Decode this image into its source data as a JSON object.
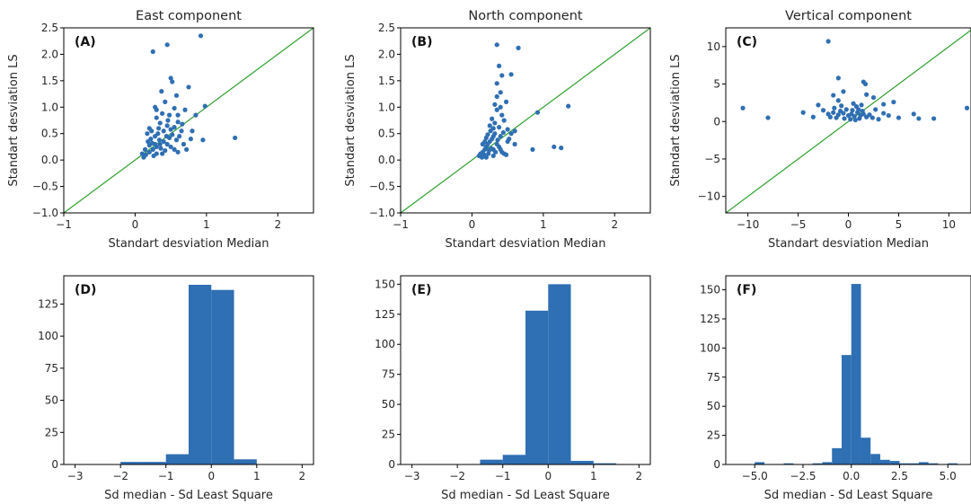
{
  "colors": {
    "points": "#2f6fb3",
    "bars": "#2f6fb3",
    "diagonal": "#2ca02c",
    "axes": "#000000"
  },
  "chart_data": [
    {
      "id": "A",
      "type": "scatter",
      "panel_label": "(A)",
      "title": "East component",
      "xlabel": "Standart desviation Median",
      "ylabel": "Standart desviation LS",
      "xlim": [
        -1,
        2.5
      ],
      "ylim": [
        -1.0,
        2.5
      ],
      "xticks": [
        -1,
        0,
        1,
        2
      ],
      "xtick_labels": [
        "−1",
        "0",
        "1",
        "2"
      ],
      "yticks": [
        -1.0,
        -0.5,
        0.0,
        0.5,
        1.0,
        1.5,
        2.0,
        2.5
      ],
      "ytick_labels": [
        "−1.0",
        "−0.5",
        "0.0",
        "0.5",
        "1.0",
        "1.5",
        "2.0",
        "2.5"
      ],
      "reference_line": "y = x",
      "points": [
        [
          0.92,
          2.35
        ],
        [
          0.45,
          2.18
        ],
        [
          0.25,
          2.05
        ],
        [
          0.5,
          1.55
        ],
        [
          0.52,
          1.48
        ],
        [
          0.37,
          1.3
        ],
        [
          0.75,
          1.38
        ],
        [
          0.58,
          1.22
        ],
        [
          0.98,
          1.02
        ],
        [
          0.42,
          1.1
        ],
        [
          0.28,
          1.0
        ],
        [
          0.55,
          0.98
        ],
        [
          0.7,
          0.95
        ],
        [
          0.85,
          0.85
        ],
        [
          1.4,
          0.42
        ],
        [
          0.95,
          0.38
        ],
        [
          0.78,
          0.4
        ],
        [
          0.6,
          0.72
        ],
        [
          0.48,
          0.85
        ],
        [
          0.3,
          0.8
        ],
        [
          0.2,
          0.6
        ],
        [
          0.35,
          0.7
        ],
        [
          0.45,
          0.65
        ],
        [
          0.65,
          0.55
        ],
        [
          0.12,
          0.05
        ],
        [
          0.15,
          0.1
        ],
        [
          0.2,
          0.15
        ],
        [
          0.25,
          0.2
        ],
        [
          0.3,
          0.25
        ],
        [
          0.35,
          0.3
        ],
        [
          0.18,
          0.35
        ],
        [
          0.22,
          0.4
        ],
        [
          0.28,
          0.45
        ],
        [
          0.32,
          0.5
        ],
        [
          0.4,
          0.35
        ],
        [
          0.45,
          0.3
        ],
        [
          0.5,
          0.25
        ],
        [
          0.55,
          0.2
        ],
        [
          0.6,
          0.15
        ],
        [
          0.38,
          0.12
        ],
        [
          0.42,
          0.18
        ],
        [
          0.48,
          0.42
        ],
        [
          0.52,
          0.48
        ],
        [
          0.58,
          0.38
        ],
        [
          0.26,
          0.08
        ],
        [
          0.3,
          0.12
        ],
        [
          0.36,
          0.22
        ],
        [
          0.4,
          0.55
        ],
        [
          0.14,
          0.2
        ],
        [
          0.2,
          0.28
        ],
        [
          0.24,
          0.32
        ],
        [
          0.62,
          0.45
        ],
        [
          0.68,
          0.3
        ],
        [
          0.72,
          0.2
        ],
        [
          0.17,
          0.5
        ],
        [
          0.23,
          0.55
        ],
        [
          0.33,
          0.6
        ],
        [
          0.5,
          0.58
        ],
        [
          0.55,
          0.62
        ],
        [
          0.1,
          0.12
        ],
        [
          0.28,
          0.3
        ],
        [
          0.34,
          0.38
        ],
        [
          0.44,
          0.45
        ],
        [
          0.8,
          0.55
        ],
        [
          0.3,
          0.95
        ],
        [
          0.38,
          0.88
        ],
        [
          0.46,
          0.75
        ],
        [
          0.6,
          0.85
        ],
        [
          0.66,
          0.68
        ]
      ]
    },
    {
      "id": "B",
      "type": "scatter",
      "panel_label": "(B)",
      "title": "North component",
      "xlabel": "Standart desviation Median",
      "ylabel": "Standart desviation LS",
      "xlim": [
        -1,
        2.5
      ],
      "ylim": [
        -1.0,
        2.5
      ],
      "xticks": [
        -1,
        0,
        1,
        2
      ],
      "xtick_labels": [
        "−1",
        "0",
        "1",
        "2"
      ],
      "yticks": [
        -1.0,
        -0.5,
        0.0,
        0.5,
        1.0,
        1.5,
        2.0,
        2.5
      ],
      "ytick_labels": [
        "−1.0",
        "−0.5",
        "0.0",
        "0.5",
        "1.0",
        "1.5",
        "2.0",
        "2.5"
      ],
      "reference_line": "y = x",
      "points": [
        [
          0.65,
          2.12
        ],
        [
          0.35,
          2.18
        ],
        [
          0.38,
          1.78
        ],
        [
          0.55,
          1.62
        ],
        [
          0.35,
          1.45
        ],
        [
          0.42,
          1.6
        ],
        [
          0.4,
          1.28
        ],
        [
          0.35,
          1.2
        ],
        [
          0.32,
          1.05
        ],
        [
          0.4,
          1.0
        ],
        [
          0.48,
          1.1
        ],
        [
          0.92,
          0.9
        ],
        [
          1.35,
          1.02
        ],
        [
          1.15,
          0.25
        ],
        [
          1.25,
          0.23
        ],
        [
          0.85,
          0.2
        ],
        [
          0.6,
          0.3
        ],
        [
          0.55,
          0.5
        ],
        [
          0.5,
          0.58
        ],
        [
          0.45,
          0.75
        ],
        [
          0.28,
          0.78
        ],
        [
          0.3,
          0.6
        ],
        [
          0.1,
          0.08
        ],
        [
          0.12,
          0.12
        ],
        [
          0.15,
          0.15
        ],
        [
          0.18,
          0.2
        ],
        [
          0.2,
          0.25
        ],
        [
          0.22,
          0.3
        ],
        [
          0.25,
          0.35
        ],
        [
          0.28,
          0.4
        ],
        [
          0.3,
          0.45
        ],
        [
          0.32,
          0.5
        ],
        [
          0.35,
          0.3
        ],
        [
          0.38,
          0.25
        ],
        [
          0.4,
          0.2
        ],
        [
          0.42,
          0.15
        ],
        [
          0.45,
          0.12
        ],
        [
          0.48,
          0.1
        ],
        [
          0.2,
          0.42
        ],
        [
          0.22,
          0.48
        ],
        [
          0.26,
          0.55
        ],
        [
          0.3,
          0.2
        ],
        [
          0.33,
          0.15
        ],
        [
          0.15,
          0.3
        ],
        [
          0.18,
          0.35
        ],
        [
          0.5,
          0.35
        ],
        [
          0.52,
          0.4
        ],
        [
          0.14,
          0.05
        ],
        [
          0.17,
          0.1
        ],
        [
          0.24,
          0.18
        ],
        [
          0.27,
          0.22
        ],
        [
          0.36,
          0.38
        ],
        [
          0.4,
          0.45
        ],
        [
          0.44,
          0.52
        ],
        [
          0.25,
          0.65
        ],
        [
          0.32,
          0.7
        ],
        [
          0.38,
          0.62
        ],
        [
          0.2,
          0.05
        ],
        [
          0.3,
          0.08
        ],
        [
          0.23,
          0.12
        ],
        [
          0.35,
          0.95
        ],
        [
          0.42,
          0.85
        ],
        [
          0.6,
          0.55
        ]
      ]
    },
    {
      "id": "C",
      "type": "scatter",
      "panel_label": "(C)",
      "title": "Vertical component",
      "xlabel": "Standart desviation Median",
      "ylabel": "Standart desviation LS",
      "xlim": [
        -12.2,
        12.2
      ],
      "ylim": [
        -12.2,
        12.5
      ],
      "xticks": [
        -10,
        -5,
        0,
        5,
        10
      ],
      "xtick_labels": [
        "−10",
        "−5",
        "0",
        "5",
        "10"
      ],
      "yticks": [
        -10,
        -5,
        0,
        5,
        10
      ],
      "ytick_labels": [
        "−10",
        "−5",
        "0",
        "5",
        "10"
      ],
      "reference_line": "y = x",
      "points": [
        [
          -2.0,
          10.7
        ],
        [
          -1.0,
          5.8
        ],
        [
          1.5,
          5.3
        ],
        [
          1.7,
          5.0
        ],
        [
          -0.5,
          4.0
        ],
        [
          -1.5,
          3.5
        ],
        [
          1.8,
          3.6
        ],
        [
          -1.0,
          2.8
        ],
        [
          2.5,
          3.2
        ],
        [
          4.5,
          2.6
        ],
        [
          3.5,
          2.3
        ],
        [
          -3.0,
          2.2
        ],
        [
          0.8,
          2.0
        ],
        [
          -10.5,
          1.8
        ],
        [
          11.8,
          1.8
        ],
        [
          -4.5,
          1.2
        ],
        [
          -8.0,
          0.5
        ],
        [
          -2.5,
          1.5
        ],
        [
          2.7,
          1.6
        ],
        [
          6.5,
          1.0
        ],
        [
          5.0,
          0.5
        ],
        [
          7.0,
          0.4
        ],
        [
          8.5,
          0.4
        ],
        [
          -3.5,
          0.6
        ],
        [
          3.0,
          0.3
        ],
        [
          -2.0,
          1.0
        ],
        [
          -1.5,
          1.2
        ],
        [
          -1.0,
          0.9
        ],
        [
          -0.5,
          1.1
        ],
        [
          0.0,
          0.8
        ],
        [
          0.3,
          1.0
        ],
        [
          0.6,
          0.7
        ],
        [
          0.9,
          1.2
        ],
        [
          1.2,
          0.8
        ],
        [
          1.5,
          1.0
        ],
        [
          1.8,
          0.6
        ],
        [
          2.1,
          0.9
        ],
        [
          2.4,
          0.5
        ],
        [
          -1.8,
          0.6
        ],
        [
          -1.2,
          0.5
        ],
        [
          -0.8,
          1.4
        ],
        [
          -0.2,
          1.6
        ],
        [
          0.4,
          1.5
        ],
        [
          1.0,
          1.6
        ],
        [
          1.4,
          1.4
        ],
        [
          -0.4,
          0.4
        ],
        [
          0.2,
          0.3
        ],
        [
          0.7,
          0.2
        ],
        [
          1.1,
          0.4
        ],
        [
          -1.4,
          1.8
        ],
        [
          -0.7,
          2.1
        ],
        [
          0.5,
          2.4
        ],
        [
          1.3,
          2.2
        ],
        [
          3.5,
          1.1
        ],
        [
          4.0,
          0.8
        ]
      ]
    },
    {
      "id": "D",
      "type": "bar",
      "panel_label": "(D)",
      "xlabel": "Sd median - Sd Least Square",
      "ylabel": "",
      "xlim": [
        -3.25,
        2.25
      ],
      "ylim": [
        0,
        147
      ],
      "xticks": [
        -3,
        -2,
        -1,
        0,
        1,
        2
      ],
      "xtick_labels": [
        "−3",
        "−2",
        "−1",
        "0",
        "1",
        "2"
      ],
      "yticks": [
        0,
        25,
        50,
        75,
        100,
        125
      ],
      "ytick_labels": [
        "0",
        "25",
        "50",
        "75",
        "100",
        "125"
      ],
      "bins": [
        [
          -2.0,
          -1.5,
          2
        ],
        [
          -1.5,
          -1.0,
          2
        ],
        [
          -1.0,
          -0.5,
          8
        ],
        [
          -0.5,
          0.0,
          140
        ],
        [
          0.0,
          0.5,
          136
        ],
        [
          0.5,
          1.0,
          4
        ]
      ]
    },
    {
      "id": "E",
      "type": "bar",
      "panel_label": "(E)",
      "xlabel": "Sd median - Sd Least Square",
      "ylabel": "",
      "xlim": [
        -3.25,
        2.25
      ],
      "ylim": [
        0,
        157
      ],
      "xticks": [
        -3,
        -2,
        -1,
        0,
        1,
        2
      ],
      "xtick_labels": [
        "−3",
        "−2",
        "−1",
        "0",
        "1",
        "2"
      ],
      "yticks": [
        0,
        25,
        50,
        75,
        100,
        125,
        150
      ],
      "ytick_labels": [
        "0",
        "25",
        "50",
        "75",
        "100",
        "125",
        "150"
      ],
      "bins": [
        [
          -1.5,
          -1.0,
          4
        ],
        [
          -1.0,
          -0.5,
          8
        ],
        [
          -0.5,
          0.0,
          128
        ],
        [
          0.0,
          0.5,
          150
        ],
        [
          0.5,
          1.0,
          3
        ],
        [
          1.0,
          1.5,
          1
        ]
      ]
    },
    {
      "id": "F",
      "type": "bar",
      "panel_label": "(F)",
      "xlabel": "Sd median - Sd Least Square",
      "ylabel": "",
      "xlim": [
        -6.5,
        6.2
      ],
      "ylim": [
        0,
        162
      ],
      "xticks": [
        -5,
        -2.5,
        0,
        2.5,
        5
      ],
      "xtick_labels": [
        "−5.0",
        "−2.5",
        "0.0",
        "2.5",
        "5.0"
      ],
      "yticks": [
        0,
        25,
        50,
        75,
        100,
        125,
        150
      ],
      "ytick_labels": [
        "0",
        "25",
        "50",
        "75",
        "100",
        "125",
        "150"
      ],
      "bins": [
        [
          -5.0,
          -4.5,
          2
        ],
        [
          -4.5,
          -4.0,
          0
        ],
        [
          -4.0,
          -3.5,
          0
        ],
        [
          -3.5,
          -3.0,
          1
        ],
        [
          -3.0,
          -2.5,
          0
        ],
        [
          -2.5,
          -2.0,
          0
        ],
        [
          -2.0,
          -1.5,
          1
        ],
        [
          -1.5,
          -1.0,
          2
        ],
        [
          -1.0,
          -0.5,
          14
        ],
        [
          -0.5,
          0.0,
          94
        ],
        [
          0.0,
          0.5,
          155
        ],
        [
          0.5,
          1.0,
          23
        ],
        [
          1.0,
          1.5,
          9
        ],
        [
          1.5,
          2.0,
          4
        ],
        [
          2.0,
          2.5,
          3
        ],
        [
          2.5,
          3.0,
          1
        ],
        [
          3.0,
          3.5,
          1
        ],
        [
          3.5,
          4.0,
          2
        ],
        [
          4.0,
          4.5,
          1
        ],
        [
          4.5,
          5.0,
          0
        ],
        [
          5.0,
          5.5,
          1
        ]
      ]
    }
  ]
}
